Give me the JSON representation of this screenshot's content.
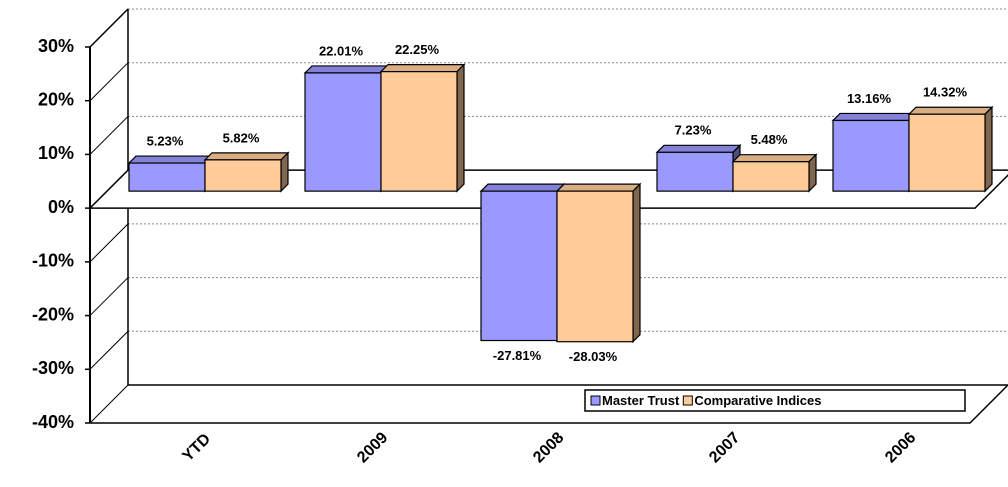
{
  "chart_data": {
    "type": "bar3d",
    "categories": [
      "YTD",
      "2009",
      "2008",
      "2007",
      "2006"
    ],
    "series": [
      {
        "name": "Master Trust",
        "color": "#9999ff",
        "values": [
          5.23,
          22.01,
          -27.81,
          7.23,
          13.16
        ],
        "value_labels": [
          "5.23%",
          "22.01%",
          "-27.81%",
          "7.23%",
          "13.16%"
        ]
      },
      {
        "name": "Comparative Indices",
        "color": "#ffcc99",
        "values": [
          5.82,
          22.25,
          -28.03,
          5.48,
          14.32
        ],
        "value_labels": [
          "5.82%",
          "22.25%",
          "-28.03%",
          "5.48%",
          "14.32%"
        ]
      }
    ],
    "ylim": [
      -40,
      30
    ],
    "yticks": [
      {
        "value": -40,
        "label": "-40%"
      },
      {
        "value": -30,
        "label": "-30%"
      },
      {
        "value": -20,
        "label": "-20%"
      },
      {
        "value": -10,
        "label": "-10%"
      },
      {
        "value": 0,
        "label": "0%"
      },
      {
        "value": 10,
        "label": "10%"
      },
      {
        "value": 20,
        "label": "20%"
      },
      {
        "value": 30,
        "label": "30%"
      }
    ],
    "grid": true,
    "legend": "bottom-right"
  }
}
